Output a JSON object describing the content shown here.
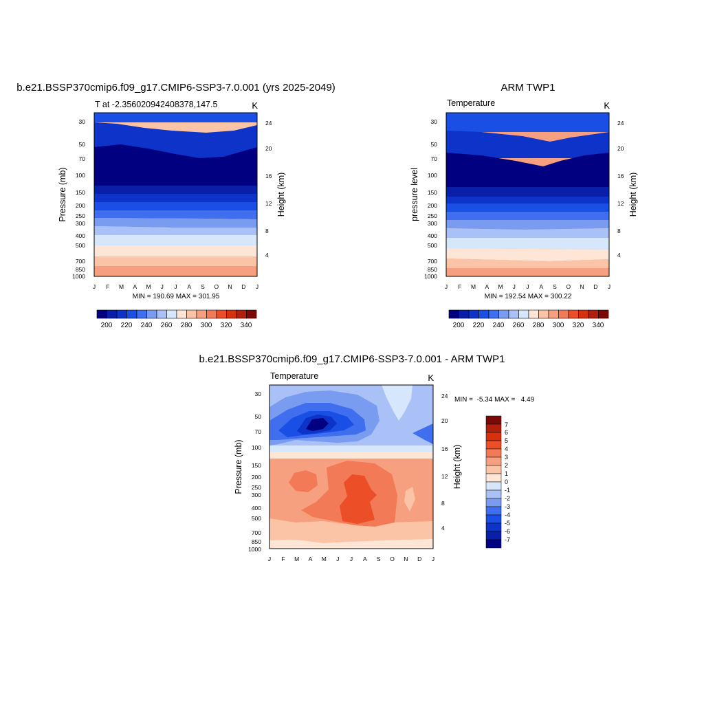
{
  "chart_data": [
    {
      "type": "contour",
      "id": "model",
      "title": "b.e21.BSSP370cmip6.f09_g17.CMIP6-SSP3-7.0.001 (yrs 2025-2049)",
      "subtitle_left": "T at -2.356020942408378,147.5",
      "units": "K",
      "ylabel_left": "Pressure (mb)",
      "ylabel_right": "Height (km)",
      "x_ticks": [
        "J",
        "F",
        "M",
        "A",
        "M",
        "J",
        "J",
        "A",
        "S",
        "O",
        "N",
        "D",
        "J"
      ],
      "pressure_ticks": [
        "30",
        "50",
        "70",
        "100",
        "150",
        "200",
        "250",
        "300",
        "400",
        "500",
        "700",
        "850",
        "1000"
      ],
      "height_ticks": [
        "24",
        "20",
        "16",
        "12",
        "8",
        "4"
      ],
      "stats": "MIN = 190.69 MAX = 301.95",
      "colorbar_labels": [
        "200",
        "220",
        "240",
        "260",
        "280",
        "300",
        "320",
        "340"
      ],
      "min": 190.69,
      "max": 301.95
    },
    {
      "type": "contour",
      "id": "obs",
      "title": "ARM TWP1",
      "subtitle_left": "Temperature",
      "units": "K",
      "ylabel_left": "pressure level",
      "ylabel_right": "Height (km)",
      "x_ticks": [
        "J",
        "F",
        "M",
        "A",
        "M",
        "J",
        "J",
        "A",
        "S",
        "O",
        "N",
        "D",
        "J"
      ],
      "pressure_ticks": [
        "30",
        "50",
        "70",
        "100",
        "150",
        "200",
        "250",
        "300",
        "400",
        "500",
        "700",
        "850",
        "1000"
      ],
      "height_ticks": [
        "24",
        "20",
        "16",
        "12",
        "8",
        "4"
      ],
      "stats": "MIN = 192.54 MAX = 300.22",
      "colorbar_labels": [
        "200",
        "220",
        "240",
        "260",
        "280",
        "300",
        "320",
        "340"
      ],
      "min": 192.54,
      "max": 300.22
    },
    {
      "type": "contour",
      "id": "diff",
      "title": "b.e21.BSSP370cmip6.f09_g17.CMIP6-SSP3-7.0.001 - ARM TWP1",
      "subtitle_left": "Temperature",
      "units": "K",
      "ylabel_left": "Pressure (mb)",
      "ylabel_right": "Height (km)",
      "x_ticks": [
        "J",
        "F",
        "M",
        "A",
        "M",
        "J",
        "J",
        "A",
        "S",
        "O",
        "N",
        "D",
        "J"
      ],
      "pressure_ticks": [
        "30",
        "50",
        "70",
        "100",
        "150",
        "200",
        "250",
        "300",
        "400",
        "500",
        "700",
        "850",
        "1000"
      ],
      "height_ticks": [
        "24",
        "20",
        "16",
        "12",
        "8",
        "4"
      ],
      "stats": "MIN =  -5.34 MAX =   4.49",
      "colorbar_labels": [
        "7",
        "6",
        "5",
        "4",
        "3",
        "2",
        "1",
        "0",
        "-1",
        "-2",
        "-3",
        "-4",
        "-5",
        "-6",
        "-7"
      ],
      "min": -5.34,
      "max": 4.49
    }
  ],
  "colors": {
    "abs_palette": [
      "#000080",
      "#0a1fa8",
      "#0d33c8",
      "#1a4fe6",
      "#3f6fee",
      "#7a9cf0",
      "#a9c1f7",
      "#d6e6fb",
      "#fde6d6",
      "#fbc4a6",
      "#f6a07f",
      "#f27a56",
      "#ec4e27",
      "#d6300f",
      "#b0200c",
      "#7a0a05"
    ],
    "diff_palette": [
      "#000080",
      "#0a1fa8",
      "#0d33c8",
      "#1a4fe6",
      "#3f6fee",
      "#7a9cf0",
      "#a9c1f7",
      "#d6e6fb",
      "#fde6d6",
      "#fbc4a6",
      "#f6a07f",
      "#f27a56",
      "#ec4e27",
      "#d6300f",
      "#b0200c",
      "#7a0a05"
    ]
  }
}
